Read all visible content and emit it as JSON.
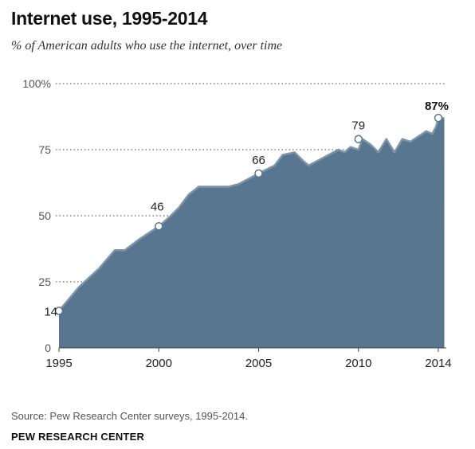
{
  "header": {
    "title": "Internet use, 1995-2014",
    "subtitle": "% of American adults who use the internet, over time"
  },
  "footer": {
    "source": "Source: Pew Research Center surveys, 1995-2014.",
    "brand": "PEW RESEARCH CENTER"
  },
  "colors": {
    "area_fill": "#58768F",
    "area_line": "#7D95AA",
    "gridline": "#666666"
  },
  "chart_data": {
    "type": "area",
    "title": "Internet use, 1995-2014",
    "subtitle": "% of American adults who use the internet, over time",
    "xlabel": "",
    "ylabel": "",
    "xlim": [
      1995,
      2014.4
    ],
    "ylim": [
      0,
      100
    ],
    "grid": "dotted horizontal at labeled ticks",
    "y_ticks": [
      {
        "value": 0,
        "label": "0"
      },
      {
        "value": 25,
        "label": "25"
      },
      {
        "value": 50,
        "label": "50"
      },
      {
        "value": 75,
        "label": "75"
      },
      {
        "value": 100,
        "label": "100%"
      }
    ],
    "x_ticks": [
      {
        "value": 1995,
        "label": "1995"
      },
      {
        "value": 2000,
        "label": "2000"
      },
      {
        "value": 2005,
        "label": "2005"
      },
      {
        "value": 2010,
        "label": "2010"
      },
      {
        "value": 2014,
        "label": "2014"
      }
    ],
    "series": [
      {
        "points": [
          [
            1995,
            14
          ],
          [
            1996,
            23
          ],
          [
            1997,
            30
          ],
          [
            1997.8,
            37
          ],
          [
            1998.3,
            37
          ],
          [
            1999,
            41
          ],
          [
            2000,
            46
          ],
          [
            2000.6,
            50
          ],
          [
            2001,
            53
          ],
          [
            2001.5,
            58
          ],
          [
            2002,
            61
          ],
          [
            2003,
            61
          ],
          [
            2003.5,
            61
          ],
          [
            2004,
            62
          ],
          [
            2005,
            66
          ],
          [
            2005.8,
            69
          ],
          [
            2006.2,
            73
          ],
          [
            2006.8,
            74
          ],
          [
            2007.2,
            71
          ],
          [
            2007.5,
            69
          ],
          [
            2008,
            71
          ],
          [
            2008.5,
            73
          ],
          [
            2009,
            75
          ],
          [
            2009.3,
            74
          ],
          [
            2009.6,
            76
          ],
          [
            2010,
            75
          ],
          [
            2010.2,
            79
          ],
          [
            2010.6,
            77
          ],
          [
            2011,
            74
          ],
          [
            2011.4,
            79
          ],
          [
            2011.8,
            74
          ],
          [
            2012.2,
            79
          ],
          [
            2012.6,
            78
          ],
          [
            2013,
            80
          ],
          [
            2013.4,
            82
          ],
          [
            2013.7,
            81
          ],
          [
            2013.9,
            84
          ],
          [
            2014,
            87
          ],
          [
            2014.3,
            87
          ]
        ]
      }
    ],
    "annotations": [
      {
        "x": 1995,
        "y": 14,
        "label": "14",
        "bold": false
      },
      {
        "x": 2000,
        "y": 46,
        "label": "46",
        "bold": false
      },
      {
        "x": 2005,
        "y": 66,
        "label": "66",
        "bold": false
      },
      {
        "x": 2010,
        "y": 79,
        "label": "79",
        "bold": false
      },
      {
        "x": 2014,
        "y": 87,
        "label": "87%",
        "bold": true
      }
    ]
  }
}
